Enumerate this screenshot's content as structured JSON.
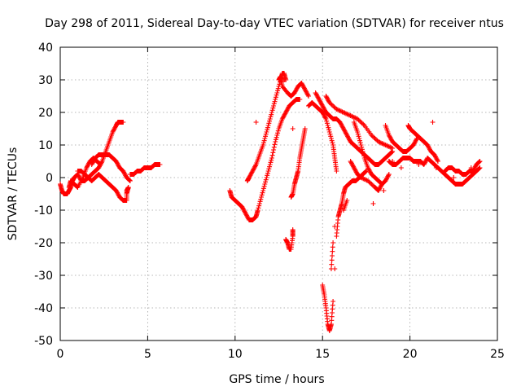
{
  "chart_data": {
    "type": "scatter",
    "title": "Day 298 of 2011, Sidereal Day-to-day VTEC variation (SDTVAR) for receiver ntus",
    "xlabel": "GPS time / hours",
    "ylabel": "SDTVAR / TECUs",
    "xlim": [
      0,
      25
    ],
    "ylim": [
      -50,
      40
    ],
    "xticks": [
      "0",
      "5",
      "10",
      "15",
      "20",
      "25"
    ],
    "yticks": [
      "40",
      "30",
      "20",
      "10",
      "0",
      "-10",
      "-20",
      "-30",
      "-40",
      "-50"
    ],
    "grid": true,
    "marker": "plus",
    "color": "#ff0000",
    "series": [
      {
        "points": [
          [
            0.0,
            -2
          ],
          [
            0.1,
            -4
          ],
          [
            0.2,
            -5
          ],
          [
            0.3,
            -5
          ],
          [
            0.4,
            -5
          ],
          [
            0.5,
            -4
          ],
          [
            0.6,
            -3
          ],
          [
            0.7,
            -1
          ],
          [
            0.8,
            0
          ],
          [
            1.0,
            1
          ],
          [
            1.2,
            -1
          ],
          [
            1.4,
            -1
          ],
          [
            1.6,
            0
          ],
          [
            1.8,
            1
          ],
          [
            2.0,
            2
          ],
          [
            2.2,
            3
          ],
          [
            2.4,
            5
          ],
          [
            2.6,
            8
          ],
          [
            2.8,
            11
          ],
          [
            3.0,
            14
          ],
          [
            3.2,
            16
          ],
          [
            3.3,
            17
          ],
          [
            3.4,
            17
          ],
          [
            3.5,
            17
          ],
          [
            3.6,
            17
          ],
          [
            1.8,
            4
          ],
          [
            2.0,
            6
          ],
          [
            2.2,
            7
          ],
          [
            2.4,
            7
          ],
          [
            2.6,
            7
          ],
          [
            2.8,
            7
          ],
          [
            3.0,
            6
          ],
          [
            3.2,
            5
          ],
          [
            3.4,
            3
          ],
          [
            3.6,
            2
          ],
          [
            3.8,
            0
          ],
          [
            4.0,
            -1
          ],
          [
            1.0,
            2
          ],
          [
            1.2,
            2
          ],
          [
            1.4,
            1
          ],
          [
            1.6,
            0
          ],
          [
            1.8,
            -1
          ],
          [
            2.0,
            0
          ],
          [
            2.2,
            1
          ],
          [
            2.4,
            0
          ],
          [
            2.6,
            -1
          ],
          [
            2.8,
            -2
          ],
          [
            3.0,
            -3
          ],
          [
            3.2,
            -4
          ],
          [
            3.4,
            -6
          ],
          [
            3.6,
            -7
          ],
          [
            3.8,
            -7
          ],
          [
            3.8,
            -4
          ],
          [
            3.9,
            -3
          ],
          [
            3.8,
            -5
          ],
          [
            0.5,
            -3
          ],
          [
            0.6,
            -1
          ],
          [
            0.8,
            -2
          ],
          [
            1.0,
            -3
          ],
          [
            1.3,
            0
          ],
          [
            1.5,
            3
          ],
          [
            1.7,
            5
          ],
          [
            1.9,
            6
          ],
          [
            2.1,
            5
          ],
          [
            2.3,
            4
          ],
          [
            4.0,
            1
          ],
          [
            4.2,
            1
          ],
          [
            4.4,
            2
          ],
          [
            4.6,
            2
          ],
          [
            4.8,
            3
          ],
          [
            5.0,
            3
          ],
          [
            5.2,
            3
          ],
          [
            5.4,
            4
          ],
          [
            5.6,
            4
          ],
          [
            5.7,
            4
          ]
        ]
      },
      {
        "points": [
          [
            9.7,
            -4
          ],
          [
            9.8,
            -6
          ],
          [
            10.0,
            -7
          ],
          [
            10.2,
            -8
          ],
          [
            10.4,
            -9
          ],
          [
            10.6,
            -11
          ],
          [
            10.8,
            -13
          ],
          [
            11.0,
            -13
          ],
          [
            11.2,
            -12
          ],
          [
            11.3,
            -10
          ],
          [
            11.5,
            -6
          ],
          [
            11.7,
            -2
          ],
          [
            11.9,
            2
          ],
          [
            12.1,
            6
          ],
          [
            12.3,
            11
          ],
          [
            12.5,
            15
          ],
          [
            12.7,
            18
          ],
          [
            12.9,
            20
          ],
          [
            13.1,
            22
          ],
          [
            13.3,
            23
          ],
          [
            13.5,
            24
          ],
          [
            13.7,
            24
          ],
          [
            10.7,
            -1
          ],
          [
            10.8,
            0
          ],
          [
            11.0,
            2
          ],
          [
            11.2,
            4
          ],
          [
            11.4,
            7
          ],
          [
            11.6,
            10
          ],
          [
            11.8,
            14
          ],
          [
            12.0,
            18
          ],
          [
            12.2,
            22
          ],
          [
            12.4,
            26
          ],
          [
            12.6,
            30
          ],
          [
            12.7,
            32
          ],
          [
            12.8,
            32
          ],
          [
            12.9,
            30
          ],
          [
            12.5,
            30
          ],
          [
            12.6,
            31
          ],
          [
            12.7,
            28
          ],
          [
            13.0,
            26
          ],
          [
            13.2,
            25
          ],
          [
            13.4,
            26
          ],
          [
            13.6,
            28
          ],
          [
            13.8,
            29
          ],
          [
            14.0,
            27
          ],
          [
            14.2,
            25
          ],
          [
            11.2,
            17
          ],
          [
            12.9,
            -19
          ],
          [
            13.0,
            -20
          ],
          [
            13.1,
            -22
          ],
          [
            13.2,
            -22
          ],
          [
            13.3,
            -18
          ],
          [
            13.3,
            -16
          ],
          [
            13.2,
            -6
          ],
          [
            13.3,
            -5
          ],
          [
            13.4,
            -2
          ],
          [
            13.5,
            0
          ],
          [
            13.6,
            2
          ],
          [
            13.7,
            6
          ],
          [
            13.8,
            9
          ],
          [
            13.9,
            12
          ],
          [
            14.0,
            15
          ],
          [
            13.3,
            15
          ],
          [
            14.2,
            22
          ],
          [
            14.4,
            23
          ],
          [
            14.6,
            22
          ],
          [
            14.8,
            21
          ],
          [
            15.0,
            20
          ],
          [
            15.2,
            18
          ],
          [
            15.4,
            14
          ],
          [
            15.6,
            10
          ],
          [
            15.7,
            6
          ],
          [
            15.8,
            2
          ],
          [
            15.0,
            -33
          ],
          [
            15.1,
            -36
          ],
          [
            15.2,
            -40
          ],
          [
            15.3,
            -45
          ],
          [
            15.4,
            -47
          ],
          [
            15.5,
            -45
          ],
          [
            15.6,
            -38
          ],
          [
            15.7,
            -28
          ],
          [
            15.8,
            -18
          ],
          [
            15.9,
            -12
          ],
          [
            16.0,
            -10
          ],
          [
            16.1,
            -8
          ],
          [
            16.2,
            -5
          ],
          [
            16.3,
            -3
          ],
          [
            16.5,
            -2
          ],
          [
            16.7,
            -1
          ],
          [
            16.9,
            -1
          ],
          [
            17.1,
            0
          ],
          [
            17.3,
            1
          ],
          [
            17.5,
            2
          ],
          [
            15.6,
            -20
          ],
          [
            15.5,
            -28
          ],
          [
            15.7,
            -15
          ],
          [
            16.2,
            -10
          ],
          [
            16.4,
            -7
          ],
          [
            14.6,
            26
          ],
          [
            14.8,
            24
          ],
          [
            15.0,
            22
          ],
          [
            15.2,
            20
          ],
          [
            15.4,
            19
          ],
          [
            15.6,
            18
          ],
          [
            15.8,
            18
          ],
          [
            16.0,
            17
          ],
          [
            16.2,
            15
          ],
          [
            16.4,
            13
          ],
          [
            16.6,
            11
          ],
          [
            16.8,
            10
          ],
          [
            17.0,
            9
          ],
          [
            17.2,
            8
          ],
          [
            17.4,
            7
          ],
          [
            17.6,
            6
          ],
          [
            17.8,
            5
          ],
          [
            18.0,
            4
          ],
          [
            18.2,
            4
          ],
          [
            18.4,
            5
          ],
          [
            18.6,
            6
          ],
          [
            18.8,
            7
          ],
          [
            19.0,
            8
          ],
          [
            15.2,
            25
          ],
          [
            15.4,
            23
          ],
          [
            15.8,
            21
          ],
          [
            16.2,
            20
          ],
          [
            16.6,
            19
          ],
          [
            17.0,
            18
          ],
          [
            17.4,
            16
          ],
          [
            17.8,
            13
          ],
          [
            18.2,
            11
          ],
          [
            18.6,
            10
          ],
          [
            19.0,
            9
          ],
          [
            16.8,
            17
          ],
          [
            17.0,
            14
          ],
          [
            17.2,
            10
          ],
          [
            17.4,
            6
          ],
          [
            17.6,
            3
          ],
          [
            17.8,
            1
          ],
          [
            18.0,
            0
          ],
          [
            18.2,
            -1
          ],
          [
            18.4,
            -2
          ],
          [
            16.6,
            5
          ],
          [
            16.8,
            3
          ],
          [
            17.0,
            1
          ],
          [
            17.2,
            0
          ],
          [
            17.6,
            -1
          ],
          [
            18.0,
            -3
          ],
          [
            18.2,
            -4
          ],
          [
            18.4,
            -2
          ],
          [
            18.6,
            -1
          ],
          [
            18.8,
            1
          ],
          [
            18.6,
            16
          ],
          [
            18.8,
            13
          ],
          [
            19.0,
            11
          ],
          [
            19.2,
            10
          ],
          [
            19.4,
            9
          ],
          [
            19.6,
            8
          ],
          [
            19.8,
            8
          ],
          [
            20.0,
            9
          ],
          [
            20.2,
            10
          ],
          [
            20.4,
            12
          ],
          [
            19.9,
            16
          ],
          [
            20.0,
            15
          ],
          [
            20.2,
            14
          ],
          [
            20.4,
            13
          ],
          [
            20.6,
            12
          ],
          [
            20.8,
            11
          ],
          [
            21.0,
            10
          ],
          [
            21.2,
            8
          ],
          [
            21.4,
            7
          ],
          [
            21.6,
            5
          ],
          [
            18.8,
            5
          ],
          [
            19.0,
            4
          ],
          [
            19.2,
            4
          ],
          [
            19.4,
            5
          ],
          [
            19.6,
            6
          ],
          [
            19.8,
            6
          ],
          [
            20.0,
            6
          ],
          [
            20.2,
            5
          ],
          [
            20.4,
            5
          ],
          [
            20.6,
            5
          ],
          [
            20.8,
            4
          ],
          [
            21.0,
            6
          ],
          [
            21.2,
            5
          ],
          [
            21.4,
            4
          ],
          [
            21.6,
            3
          ],
          [
            21.8,
            2
          ],
          [
            22.0,
            1
          ],
          [
            22.2,
            0
          ],
          [
            22.4,
            -1
          ],
          [
            22.6,
            -2
          ],
          [
            22.8,
            -2
          ],
          [
            23.0,
            -2
          ],
          [
            23.2,
            -1
          ],
          [
            23.4,
            0
          ],
          [
            23.6,
            1
          ],
          [
            23.8,
            2
          ],
          [
            24.0,
            3
          ],
          [
            22.0,
            2
          ],
          [
            22.2,
            3
          ],
          [
            22.4,
            3
          ],
          [
            22.6,
            2
          ],
          [
            22.8,
            2
          ],
          [
            23.0,
            1
          ],
          [
            23.2,
            1
          ],
          [
            23.4,
            2
          ],
          [
            23.6,
            2
          ],
          [
            23.8,
            4
          ],
          [
            24.0,
            5
          ],
          [
            21.3,
            17
          ],
          [
            17.9,
            -8
          ],
          [
            18.5,
            -4
          ],
          [
            19.0,
            5
          ],
          [
            19.5,
            3
          ],
          [
            20.5,
            4
          ],
          [
            21.5,
            3
          ],
          [
            22.5,
            0
          ],
          [
            23.5,
            3
          ]
        ]
      }
    ]
  }
}
